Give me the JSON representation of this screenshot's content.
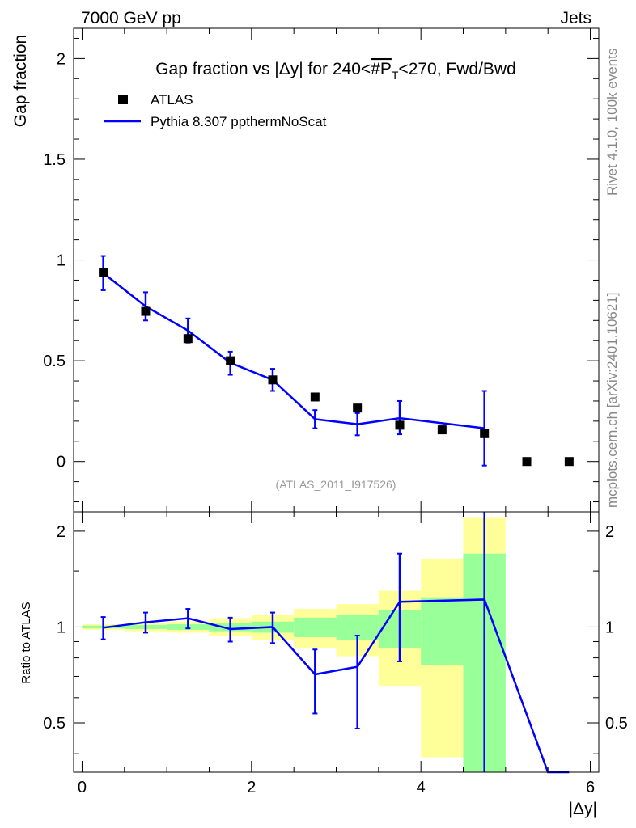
{
  "header": {
    "left": "7000 GeV pp",
    "right": "Jets"
  },
  "side_text": {
    "rivet": "Rivet 4.1.0,  100k events",
    "mcplots": "mcplots.cern.ch [arXiv:2401.10621]"
  },
  "chart_data": [
    {
      "type": "scatter",
      "panel": "main",
      "title_prefix": "Gap fraction vs |Δy| for 240<",
      "title_pt": "#P",
      "title_subscript": "T",
      "title_suffix": "<270, Fwd/Bwd",
      "ylabel": "Gap fraction",
      "xlim": [
        -0.1,
        6.1
      ],
      "ylim": [
        -0.25,
        2.15
      ],
      "yticks": [
        0,
        0.5,
        1,
        1.5,
        2
      ],
      "ytick_labels": [
        "0",
        "0.5",
        "1",
        "1.5",
        "2"
      ],
      "analysis_label": "(ATLAS_2011_I917526)",
      "legend_location": "top-left",
      "legend": {
        "data": "ATLAS",
        "mc": "Pythia 8.307 ppthermNoScat"
      },
      "data": {
        "name": "ATLAS",
        "x": [
          0.25,
          0.75,
          1.25,
          1.75,
          2.25,
          2.75,
          3.25,
          3.75,
          4.25,
          4.75,
          5.25,
          5.75
        ],
        "y": [
          0.94,
          0.745,
          0.61,
          0.5,
          0.405,
          0.32,
          0.265,
          0.18,
          0.157,
          0.138,
          0.0,
          0.0
        ]
      },
      "mc": {
        "name": "Pythia 8.307 ppthermNoScat",
        "x": [
          0.25,
          0.75,
          1.25,
          1.75,
          2.25,
          2.75,
          3.25,
          3.75,
          4.75
        ],
        "y": [
          0.935,
          0.77,
          0.65,
          0.49,
          0.405,
          0.21,
          0.185,
          0.215,
          0.165
        ],
        "yerr_low": [
          0.085,
          0.07,
          0.06,
          0.06,
          0.055,
          0.045,
          0.055,
          0.08,
          0.185
        ],
        "yerr_high": [
          0.085,
          0.07,
          0.06,
          0.055,
          0.055,
          0.045,
          0.055,
          0.085,
          0.185
        ]
      }
    },
    {
      "type": "line",
      "panel": "ratio",
      "ylabel": "Ratio to ATLAS",
      "xlabel": "|Δy|",
      "xlim": [
        -0.1,
        6.1
      ],
      "ylim": [
        0.35,
        2.3
      ],
      "yscale": "log",
      "yticks": [
        0.5,
        1,
        2
      ],
      "ytick_labels": [
        "0.5",
        "1",
        "2"
      ],
      "xticks": [
        0,
        2,
        4,
        6
      ],
      "xtick_labels": [
        "0",
        "2",
        "4",
        "6"
      ],
      "bands": {
        "x_edges": [
          0,
          0.5,
          1,
          1.5,
          2,
          2.5,
          3,
          3.5,
          4,
          4.5,
          5
        ],
        "green_low": [
          0.99,
          0.985,
          0.98,
          0.97,
          0.96,
          0.93,
          0.91,
          0.86,
          0.76,
          0.3
        ],
        "green_high": [
          1.01,
          1.015,
          1.02,
          1.03,
          1.04,
          1.07,
          1.09,
          1.13,
          1.24,
          1.7
        ],
        "yellow_low": [
          0.98,
          0.97,
          0.96,
          0.935,
          0.91,
          0.86,
          0.81,
          0.65,
          0.39,
          0.3
        ],
        "yellow_high": [
          1.02,
          1.03,
          1.04,
          1.065,
          1.09,
          1.14,
          1.18,
          1.3,
          1.64,
          2.2
        ]
      },
      "mc": {
        "x": [
          0.25,
          0.75,
          1.25,
          1.75,
          2.25,
          2.75,
          3.25,
          3.75,
          4.75,
          5.5,
          5.75
        ],
        "y": [
          0.995,
          1.035,
          1.065,
          0.985,
          1.0,
          0.71,
          0.75,
          1.2,
          1.22,
          0.35,
          0.35
        ],
        "yerr_low": [
          0.08,
          0.075,
          0.075,
          0.085,
          0.11,
          0.175,
          0.27,
          0.42,
          0.9,
          0,
          0
        ],
        "yerr_high": [
          0.08,
          0.075,
          0.075,
          0.085,
          0.11,
          0.14,
          0.19,
          0.5,
          1.2,
          0,
          0
        ]
      }
    }
  ]
}
